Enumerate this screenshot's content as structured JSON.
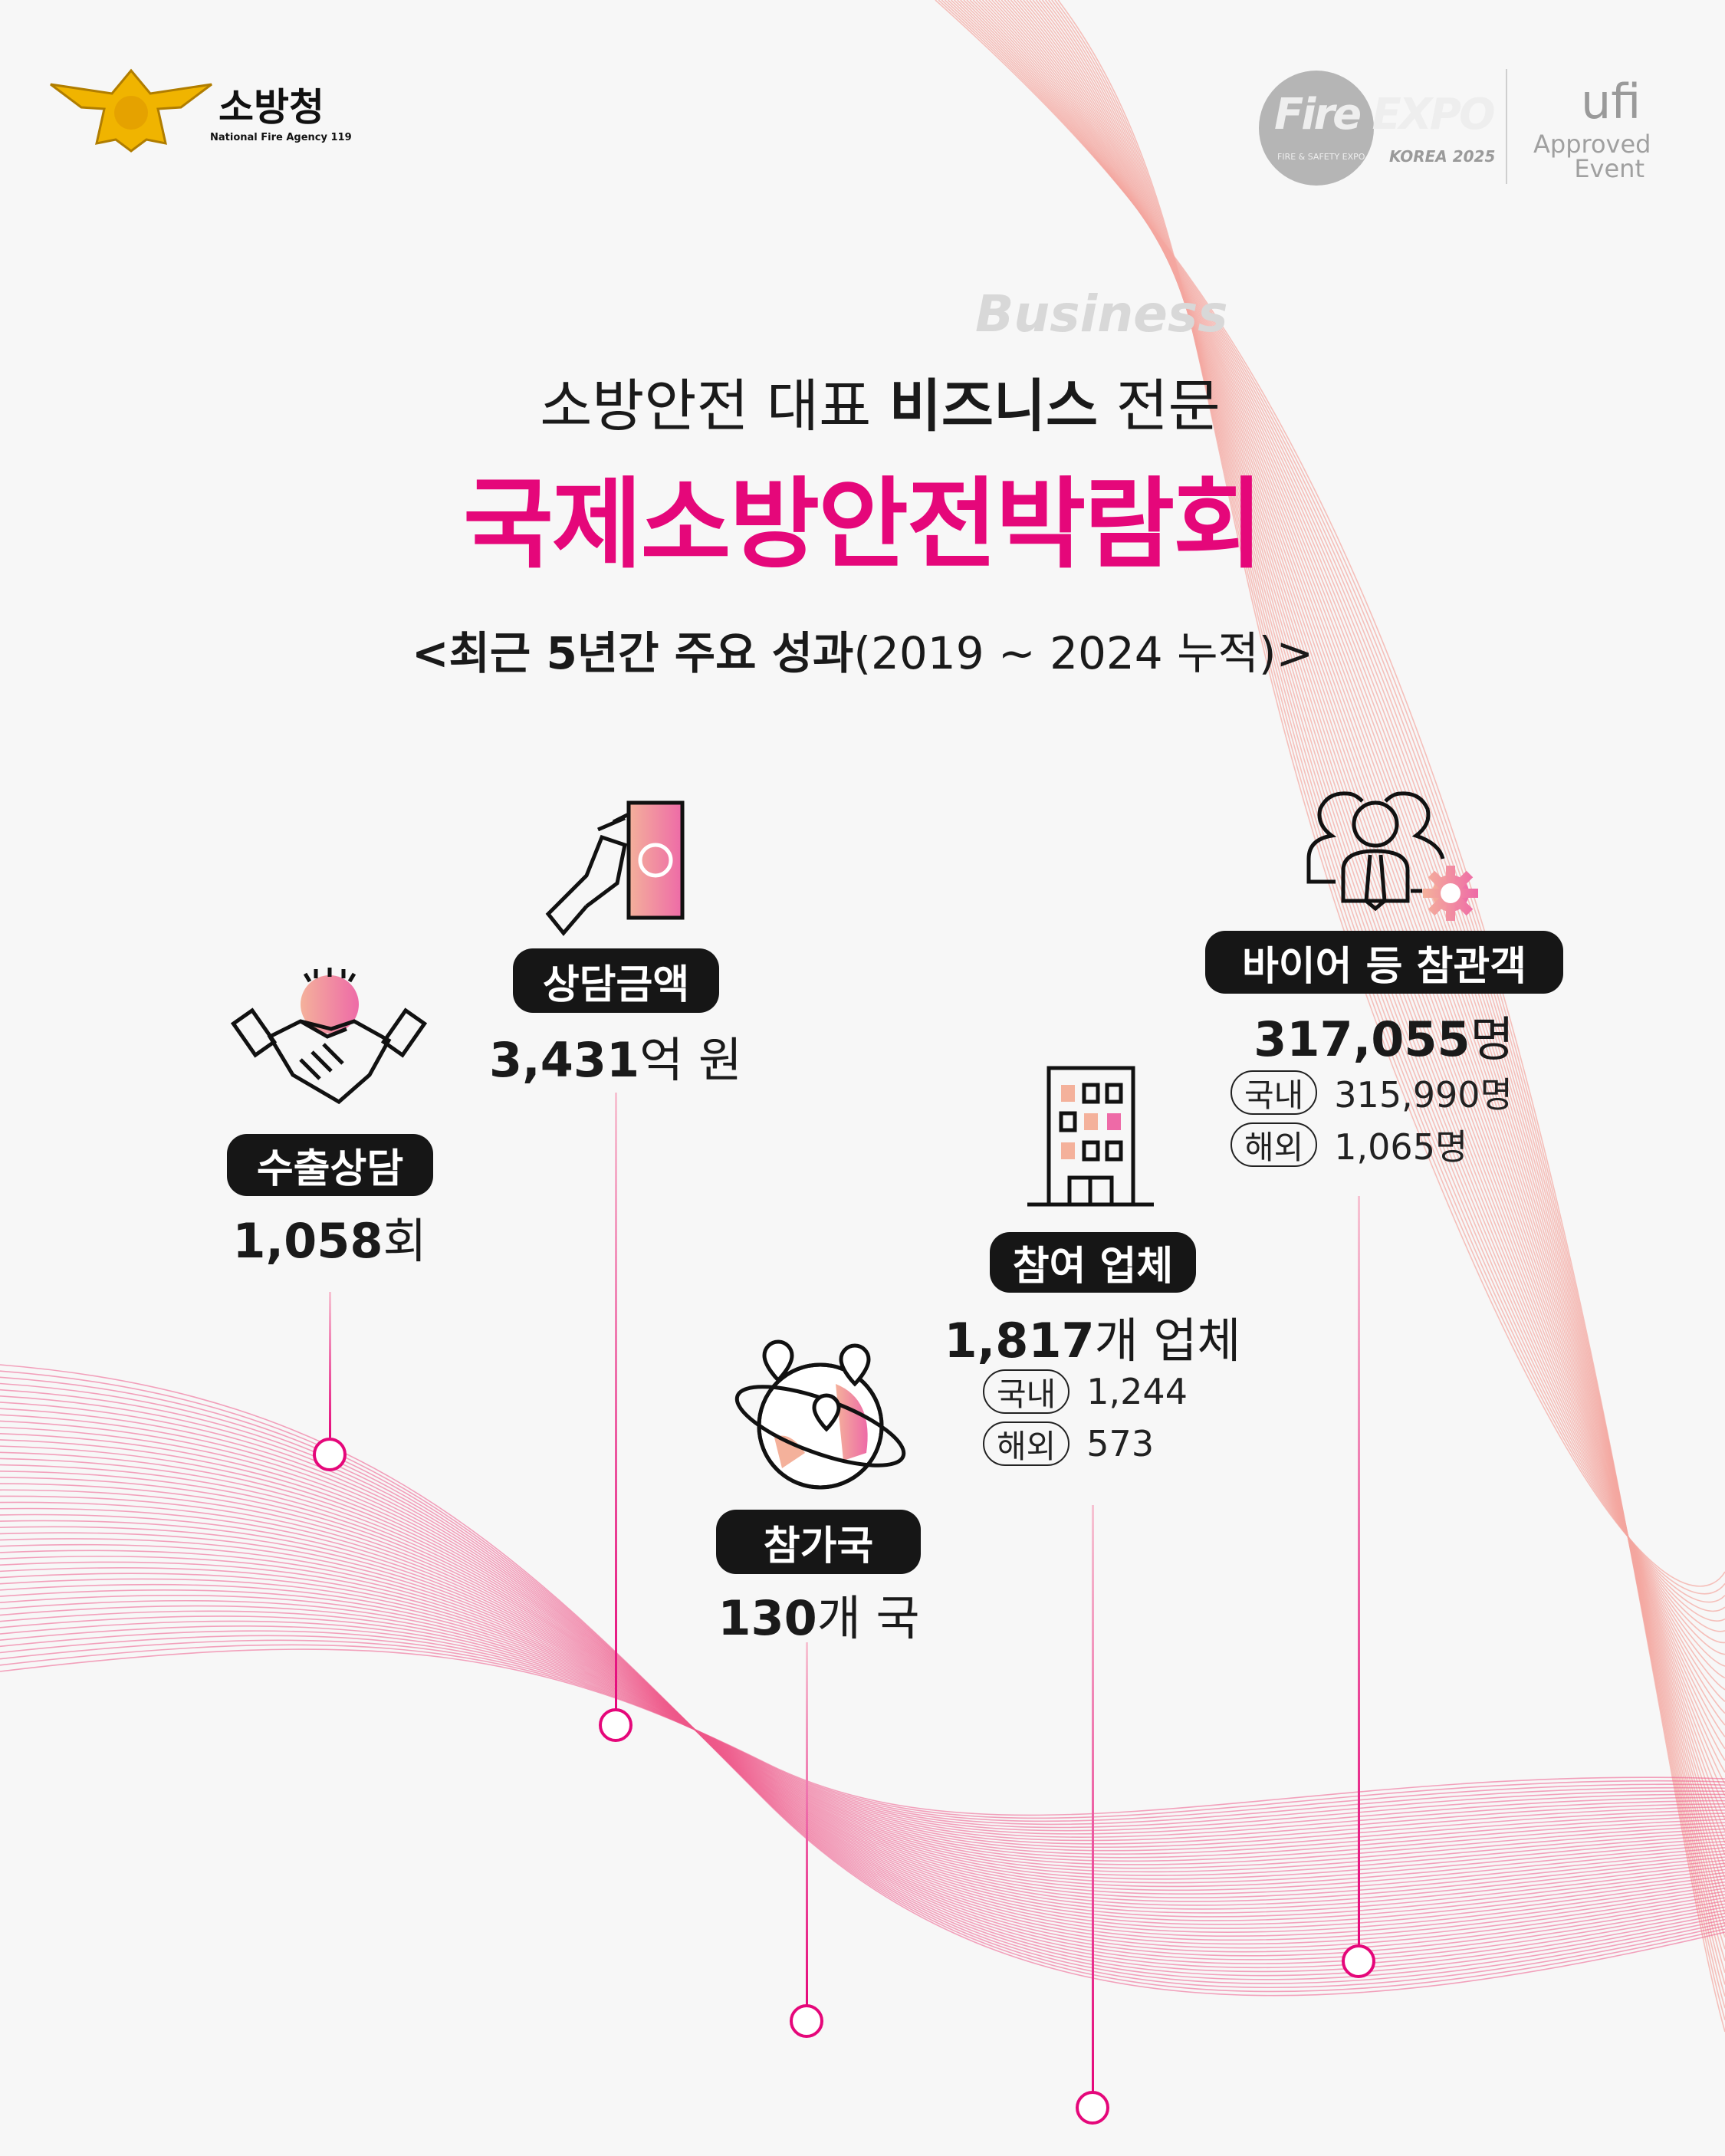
{
  "header": {
    "agency_logo": {
      "name": "소방청",
      "subtitle": "National Fire Agency 119",
      "icon": "fire-agency-emblem-icon"
    },
    "event_logo": {
      "name": "Fire EXPO",
      "subtitle": "FIRE & SAFETY EXPO",
      "edition": "KOREA 2025"
    },
    "ufi_logo": {
      "name": "ufi",
      "line1": "Approved",
      "line2": "Event"
    }
  },
  "title": {
    "line1_prefix": "소방안전 대표 ",
    "line1_bold": "비즈니스",
    "line1_suffix": " 전문",
    "watermark": "Business",
    "main": "국제소방안전박람회",
    "subtitle_bold": "<최근 5년간 주요 성과",
    "subtitle_rest": "(2019 ~ 2024 누적)>"
  },
  "colors": {
    "accent": "#e5077a",
    "pill": "#161616",
    "wave": "#f3a6a0"
  },
  "stats": [
    {
      "label": "수출상담",
      "value": "1,058",
      "unit": "회",
      "icon": "handshake-icon"
    },
    {
      "label": "상담금액",
      "value": "3,431",
      "unit": "억 원",
      "icon": "money-hand-icon"
    },
    {
      "label": "참가국",
      "value": "130",
      "unit": "개 국",
      "icon": "globe-pins-icon"
    },
    {
      "label": "참여 업체",
      "value": "1,817",
      "unit": "개 업체",
      "icon": "building-icon",
      "breakdown": [
        {
          "tag": "국내",
          "value": "1,244"
        },
        {
          "tag": "해외",
          "value": "573"
        }
      ]
    },
    {
      "label": "바이어 등 참관객",
      "value": "317,055",
      "unit": "명",
      "icon": "people-gear-icon",
      "breakdown": [
        {
          "tag": "국내",
          "value": "315,990명"
        },
        {
          "tag": "해외",
          "value": "1,065명"
        }
      ]
    }
  ]
}
